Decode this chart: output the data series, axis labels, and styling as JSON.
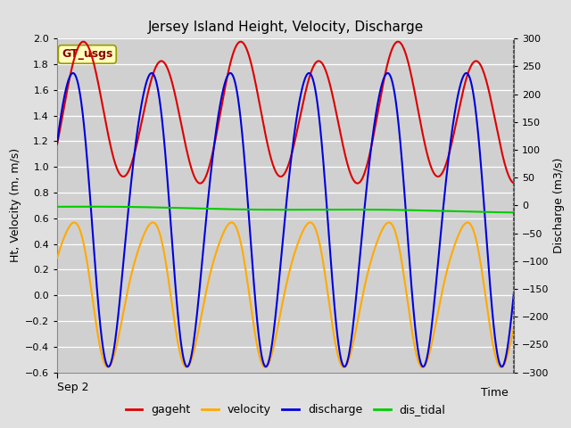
{
  "title": "Jersey Island Height, Velocity, Discharge",
  "xlabel": "Time",
  "ylabel_left": "Ht, Velocity (m, m/s)",
  "ylabel_right": "Discharge (m3/s)",
  "ylim_left": [
    -0.6,
    2.0
  ],
  "ylim_right": [
    -300,
    300
  ],
  "x_label_start": "Sep 2",
  "annotation": "GT_usgs",
  "fig_bg_color": "#e0e0e0",
  "plot_bg_color": "#d0d0d0",
  "colors": {
    "gageht": "#dd0000",
    "velocity": "#ffaa00",
    "discharge": "#0000dd",
    "dis_tidal": "#00cc00"
  },
  "legend_labels": [
    "gageht",
    "velocity",
    "discharge",
    "dis_tidal"
  ],
  "yticks_left": [
    -0.6,
    -0.4,
    -0.2,
    0.0,
    0.2,
    0.4,
    0.6,
    0.8,
    1.0,
    1.2,
    1.4,
    1.6,
    1.8,
    2.0
  ],
  "yticks_right": [
    -300,
    -250,
    -200,
    -150,
    -100,
    -50,
    0,
    50,
    100,
    150,
    200,
    250,
    300
  ],
  "n_points": 2000
}
